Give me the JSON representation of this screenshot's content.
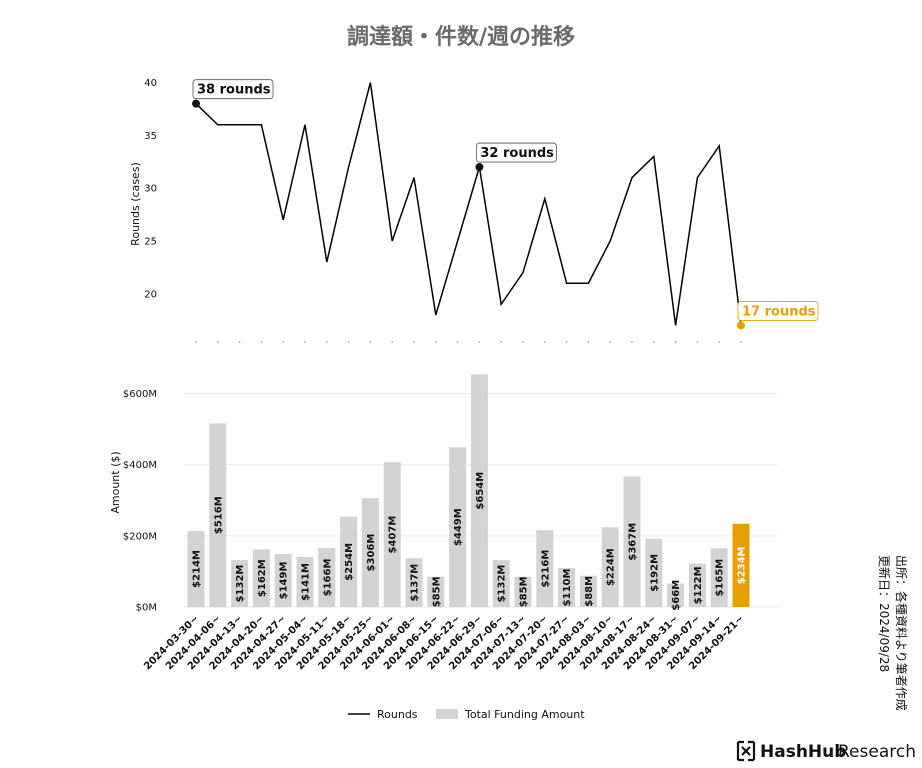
{
  "title": "調達額・件数/週の推移",
  "source_lines": [
    "出所：各種資料より筆者作成",
    "更新日：2024/09/28"
  ],
  "brand": {
    "name": "HashHub",
    "suffix": "Research"
  },
  "colors": {
    "bar": "#d3d3d3",
    "highlight": "#E69F00",
    "line": "#000000"
  },
  "legend": [
    {
      "label": "Rounds",
      "kind": "line"
    },
    {
      "label": "Total Funding Amount",
      "kind": "bar"
    }
  ],
  "chart_data": [
    {
      "type": "line",
      "ylabel": "Rounds (cases)",
      "ylim": [
        16,
        41
      ],
      "yticks": [
        20,
        25,
        30,
        35,
        40
      ],
      "x": [
        "2024-03-30~",
        "2024-04-06~",
        "2024-04-13~",
        "2024-04-20~",
        "2024-04-27~",
        "2024-05-04~",
        "2024-05-11~",
        "2024-05-18~",
        "2024-05-25~",
        "2024-06-01~",
        "2024-06-08~",
        "2024-06-15~",
        "2024-06-22~",
        "2024-06-29~",
        "2024-07-06~",
        "2024-07-13~",
        "2024-07-20~",
        "2024-07-27~",
        "2024-08-03~",
        "2024-08-10~",
        "2024-08-17~",
        "2024-08-24~",
        "2024-08-31~",
        "2024-09-07~",
        "2024-09-14~",
        "2024-09-21~"
      ],
      "series": [
        {
          "name": "Rounds",
          "values": [
            38,
            36,
            36,
            36,
            27,
            36,
            23,
            32,
            40,
            25,
            31,
            18,
            25,
            32,
            19,
            22,
            29,
            21,
            21,
            25,
            31,
            33,
            17,
            31,
            34,
            17
          ]
        }
      ],
      "annotations": [
        {
          "index": 0,
          "text": "38 rounds",
          "highlight": false
        },
        {
          "index": 13,
          "text": "32 rounds",
          "highlight": false
        },
        {
          "index": 25,
          "text": "17 rounds",
          "highlight": true
        }
      ]
    },
    {
      "type": "bar",
      "ylabel": "Amount ($)",
      "ylim": [
        0,
        700
      ],
      "yticks": [
        0,
        200,
        400,
        600
      ],
      "ytick_labels": [
        "$0M",
        "$200M",
        "$400M",
        "$600M"
      ],
      "grid": true,
      "categories": [
        "2024-03-30~",
        "2024-04-06~",
        "2024-04-13~",
        "2024-04-20~",
        "2024-04-27~",
        "2024-05-04~",
        "2024-05-11~",
        "2024-05-18~",
        "2024-05-25~",
        "2024-06-01~",
        "2024-06-08~",
        "2024-06-15~",
        "2024-06-22~",
        "2024-06-29~",
        "2024-07-06~",
        "2024-07-13~",
        "2024-07-20~",
        "2024-07-27~",
        "2024-08-03~",
        "2024-08-10~",
        "2024-08-17~",
        "2024-08-24~",
        "2024-08-31~",
        "2024-09-07~",
        "2024-09-14~",
        "2024-09-21~"
      ],
      "series": [
        {
          "name": "Total Funding Amount",
          "values": [
            214,
            516,
            132,
            162,
            149,
            141,
            166,
            254,
            306,
            407,
            137,
            85,
            449,
            654,
            132,
            85,
            216,
            110,
            88,
            224,
            367,
            192,
            66,
            122,
            165,
            234
          ]
        }
      ],
      "data_labels": [
        "$214M",
        "$516M",
        "$132M",
        "$162M",
        "$149M",
        "$141M",
        "$166M",
        "$254M",
        "$306M",
        "$407M",
        "$137M",
        "$85M",
        "$449M",
        "$654M",
        "$132M",
        "$85M",
        "$216M",
        "$110M",
        "$88M",
        "$224M",
        "$367M",
        "$192M",
        "$66M",
        "$122M",
        "$165M",
        "$234M"
      ],
      "highlight_index": 25
    }
  ]
}
